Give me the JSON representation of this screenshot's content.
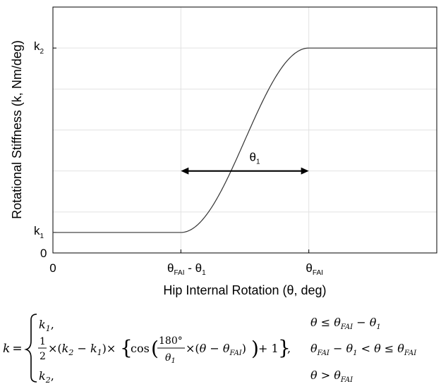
{
  "chart_data": {
    "type": "line",
    "x_ticks": [
      {
        "x": 0,
        "label": "0"
      },
      {
        "x": 1,
        "label_main": "θ",
        "label_sub": "FAI",
        "label_tail": " - θ",
        "label_tail_sub": "1"
      },
      {
        "x": 2,
        "label_main": "θ",
        "label_sub": "FAI"
      }
    ],
    "y_ticks": [
      {
        "y": 0,
        "label": "0"
      },
      {
        "y": 0.1,
        "label_main": "k",
        "label_sub": "1"
      },
      {
        "y": 1.0,
        "label_main": "k",
        "label_sub": "2"
      }
    ],
    "xlim": [
      0,
      3
    ],
    "ylim": [
      0,
      1.2
    ],
    "grid": true,
    "xlabel": "Hip Internal Rotation (θ, deg)",
    "ylabel": "Rotational Stiffness (k, Nm/deg)",
    "series": [
      {
        "function": "k1 for θ ≤ θFAI-θ1; (k2-k1)/2·(cos(180°/θ1·(θ-θFAI))+1) for θFAI-θ1 < θ ≤ θFAI; k2 for θ > θFAI",
        "k1": 0.1,
        "k2": 1.0,
        "theta_FAI": 2,
        "theta_1": 1,
        "color": "#333333"
      }
    ],
    "annotation": {
      "label_main": "θ",
      "label_sub": "1",
      "from": 1,
      "to": 2,
      "y": 0.4
    }
  },
  "equation": {
    "lhs": "k =",
    "case1_value": "k₁,",
    "case1_condition": "θ  ≤  θFAI − θ₁",
    "case2_value": "1/2 × (k₂ − k₁) × {cos(180°/θ₁ × (θ − θFAI)) + 1},",
    "case2_condition": "θFAI − θ₁ < θ ≤ θFAI",
    "case3_value": "k₂,",
    "case3_condition": "θ  > θFAI"
  }
}
